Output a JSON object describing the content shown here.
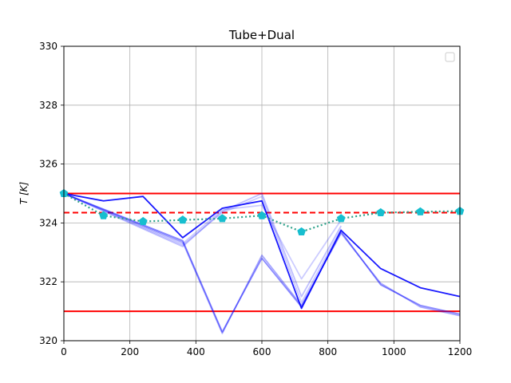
{
  "chart_data": {
    "type": "line",
    "title": "Tube+Dual",
    "xlabel": "",
    "ylabel": "T [K]",
    "xlim": [
      0,
      1200
    ],
    "ylim": [
      320,
      330
    ],
    "xticks": [
      0,
      200,
      400,
      600,
      800,
      1000,
      1200
    ],
    "yticks": [
      320,
      322,
      324,
      326,
      328,
      330
    ],
    "grid": true,
    "legend": "top-right (empty)",
    "bounds": [
      {
        "y": 325.0,
        "color": "#ff0000",
        "style": "solid"
      },
      {
        "y": 321.0,
        "color": "#ff0000",
        "style": "solid"
      },
      {
        "y": 324.35,
        "color": "#ff0000",
        "style": "dashed"
      }
    ],
    "x": [
      0,
      120,
      240,
      360,
      480,
      600,
      720,
      840,
      960,
      1080,
      1200
    ],
    "setpoint": {
      "color": "#17becf",
      "values": [
        325.0,
        324.25,
        324.05,
        324.1,
        324.15,
        324.25,
        323.7,
        324.15,
        324.35,
        324.38,
        324.4
      ]
    },
    "series": [
      {
        "color": "#0000ff",
        "opacity": 0.9,
        "values": [
          325.0,
          324.75,
          324.9,
          323.5,
          324.5,
          324.75,
          321.1,
          323.75,
          322.45,
          321.8,
          321.5
        ]
      },
      {
        "color": "#0000ff",
        "opacity": 0.45,
        "values": [
          325.0,
          null,
          null,
          323.4,
          320.3,
          322.8,
          321.15,
          323.7,
          321.9,
          321.2,
          320.9
        ]
      },
      {
        "color": "#0000ff",
        "opacity": 0.35,
        "values": [
          325.0,
          null,
          null,
          323.35,
          320.25,
          322.9,
          321.2,
          323.65,
          321.95,
          321.15,
          320.85
        ]
      },
      {
        "color": "#0000ff",
        "opacity": 0.25,
        "values": [
          325.0,
          null,
          null,
          323.2,
          324.4,
          325.0,
          321.5,
          323.9,
          null,
          null,
          null
        ]
      },
      {
        "color": "#0000ff",
        "opacity": 0.2,
        "values": [
          325.0,
          null,
          null,
          323.3,
          324.45,
          324.6,
          322.1,
          324.1,
          null,
          null,
          null
        ]
      },
      {
        "color": "#0000ff",
        "opacity": 0.2,
        "values": [
          325.0,
          null,
          null,
          323.25,
          324.35,
          324.9,
          321.3,
          323.8,
          null,
          null,
          null
        ]
      }
    ]
  }
}
